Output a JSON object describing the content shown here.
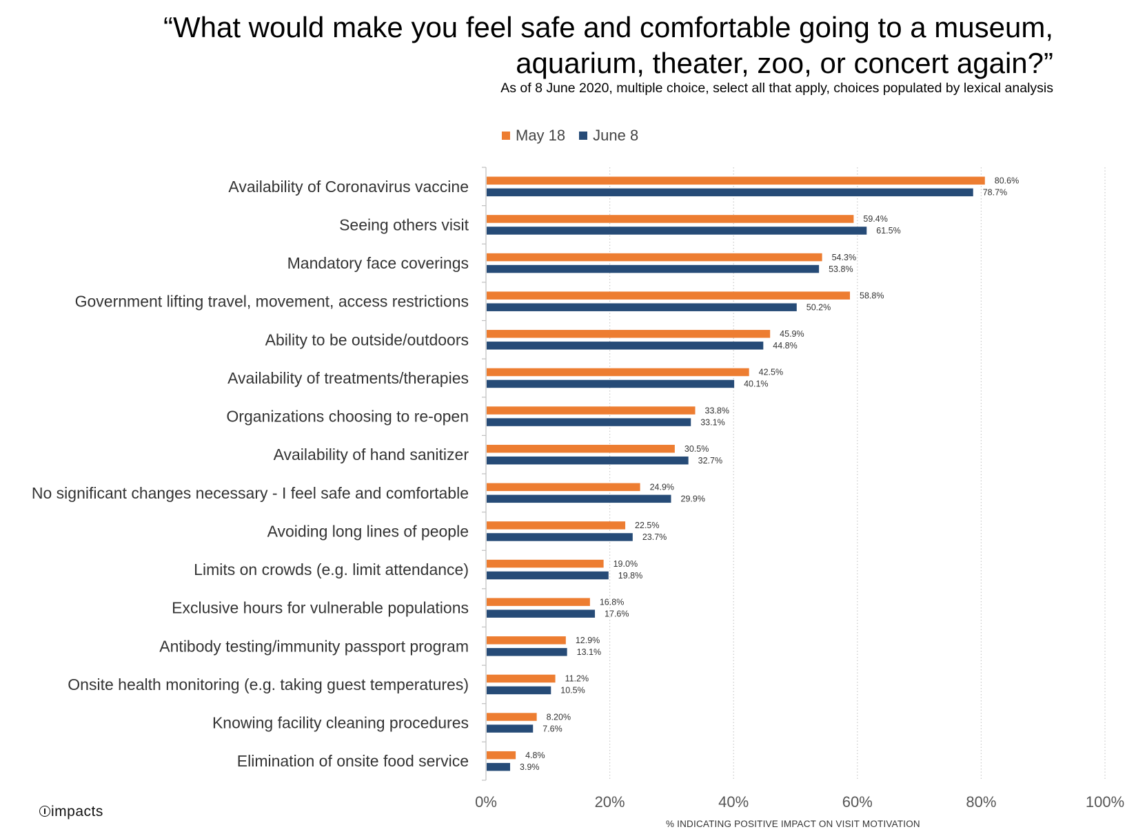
{
  "title": "“What would make you feel safe and comfortable going to a museum, aquarium, theater, zoo, or concert again?”",
  "subtitle": "As of 8 June 2020, multiple choice, select all that apply, choices populated by lexical analysis",
  "brand": "impacts",
  "colors": {
    "may18": "#ED7D31",
    "june8": "#264B77"
  },
  "chart_data": {
    "type": "bar",
    "orientation": "horizontal",
    "title": "“What would make you feel safe and comfortable going to a museum, aquarium, theater, zoo, or concert again?”",
    "subtitle": "As of 8 June 2020, multiple choice, select all that apply, choices populated by lexical analysis",
    "xlabel": "% INDICATING POSITIVE IMPACT ON VISIT MOTIVATION",
    "ylabel": "",
    "xlim": [
      0,
      100
    ],
    "x_ticks": [
      "0%",
      "20%",
      "40%",
      "60%",
      "80%",
      "100%"
    ],
    "grid": "vertical dotted",
    "legend": "top",
    "categories": [
      "Availability of Coronavirus vaccine",
      "Seeing others visit",
      "Mandatory face coverings",
      "Government lifting travel, movement, access restrictions",
      "Ability to be outside/outdoors",
      "Availability of treatments/therapies",
      "Organizations choosing to re-open",
      "Availability of hand sanitizer",
      "No significant changes necessary - I feel safe and comfortable",
      "Avoiding long lines of people",
      "Limits on crowds (e.g. limit attendance)",
      "Exclusive hours for vulnerable populations",
      "Antibody testing/immunity passport program",
      "Onsite health monitoring (e.g. taking guest temperatures)",
      "Knowing facility cleaning procedures",
      "Elimination of onsite food service"
    ],
    "series": [
      {
        "name": "May 18",
        "color": "#ED7D31",
        "values": [
          80.6,
          59.4,
          54.3,
          58.8,
          45.9,
          42.5,
          33.8,
          30.5,
          24.9,
          22.5,
          19.0,
          16.8,
          12.9,
          11.2,
          8.2,
          4.8
        ],
        "labels": [
          "80.6%",
          "59.4%",
          "54.3%",
          "58.8%",
          "45.9%",
          "42.5%",
          "33.8%",
          "30.5%",
          "24.9%",
          "22.5%",
          "19.0%",
          "16.8%",
          "12.9%",
          "11.2%",
          "8.20%",
          "4.8%"
        ]
      },
      {
        "name": "June 8",
        "color": "#264B77",
        "values": [
          78.7,
          61.5,
          53.8,
          50.2,
          44.8,
          40.1,
          33.1,
          32.7,
          29.9,
          23.7,
          19.8,
          17.6,
          13.1,
          10.5,
          7.6,
          3.9
        ],
        "labels": [
          "78.7%",
          "61.5%",
          "53.8%",
          "50.2%",
          "44.8%",
          "40.1%",
          "33.1%",
          "32.7%",
          "29.9%",
          "23.7%",
          "19.8%",
          "17.6%",
          "13.1%",
          "10.5%",
          "7.6%",
          "3.9%"
        ]
      }
    ]
  }
}
